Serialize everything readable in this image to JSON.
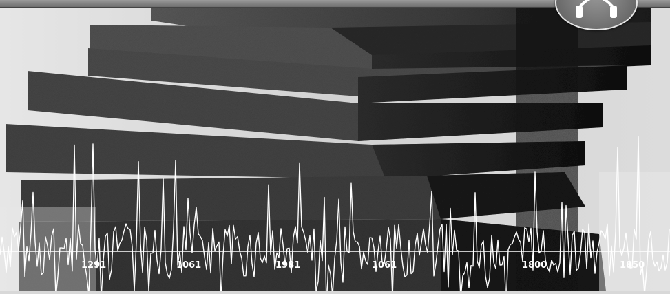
{
  "image": {
    "description_icons": [
      "headphones-icon"
    ]
  },
  "waveform": {
    "scale_labels": [
      "1291",
      "1061",
      "1981",
      "1061",
      "1800",
      "1850"
    ]
  }
}
